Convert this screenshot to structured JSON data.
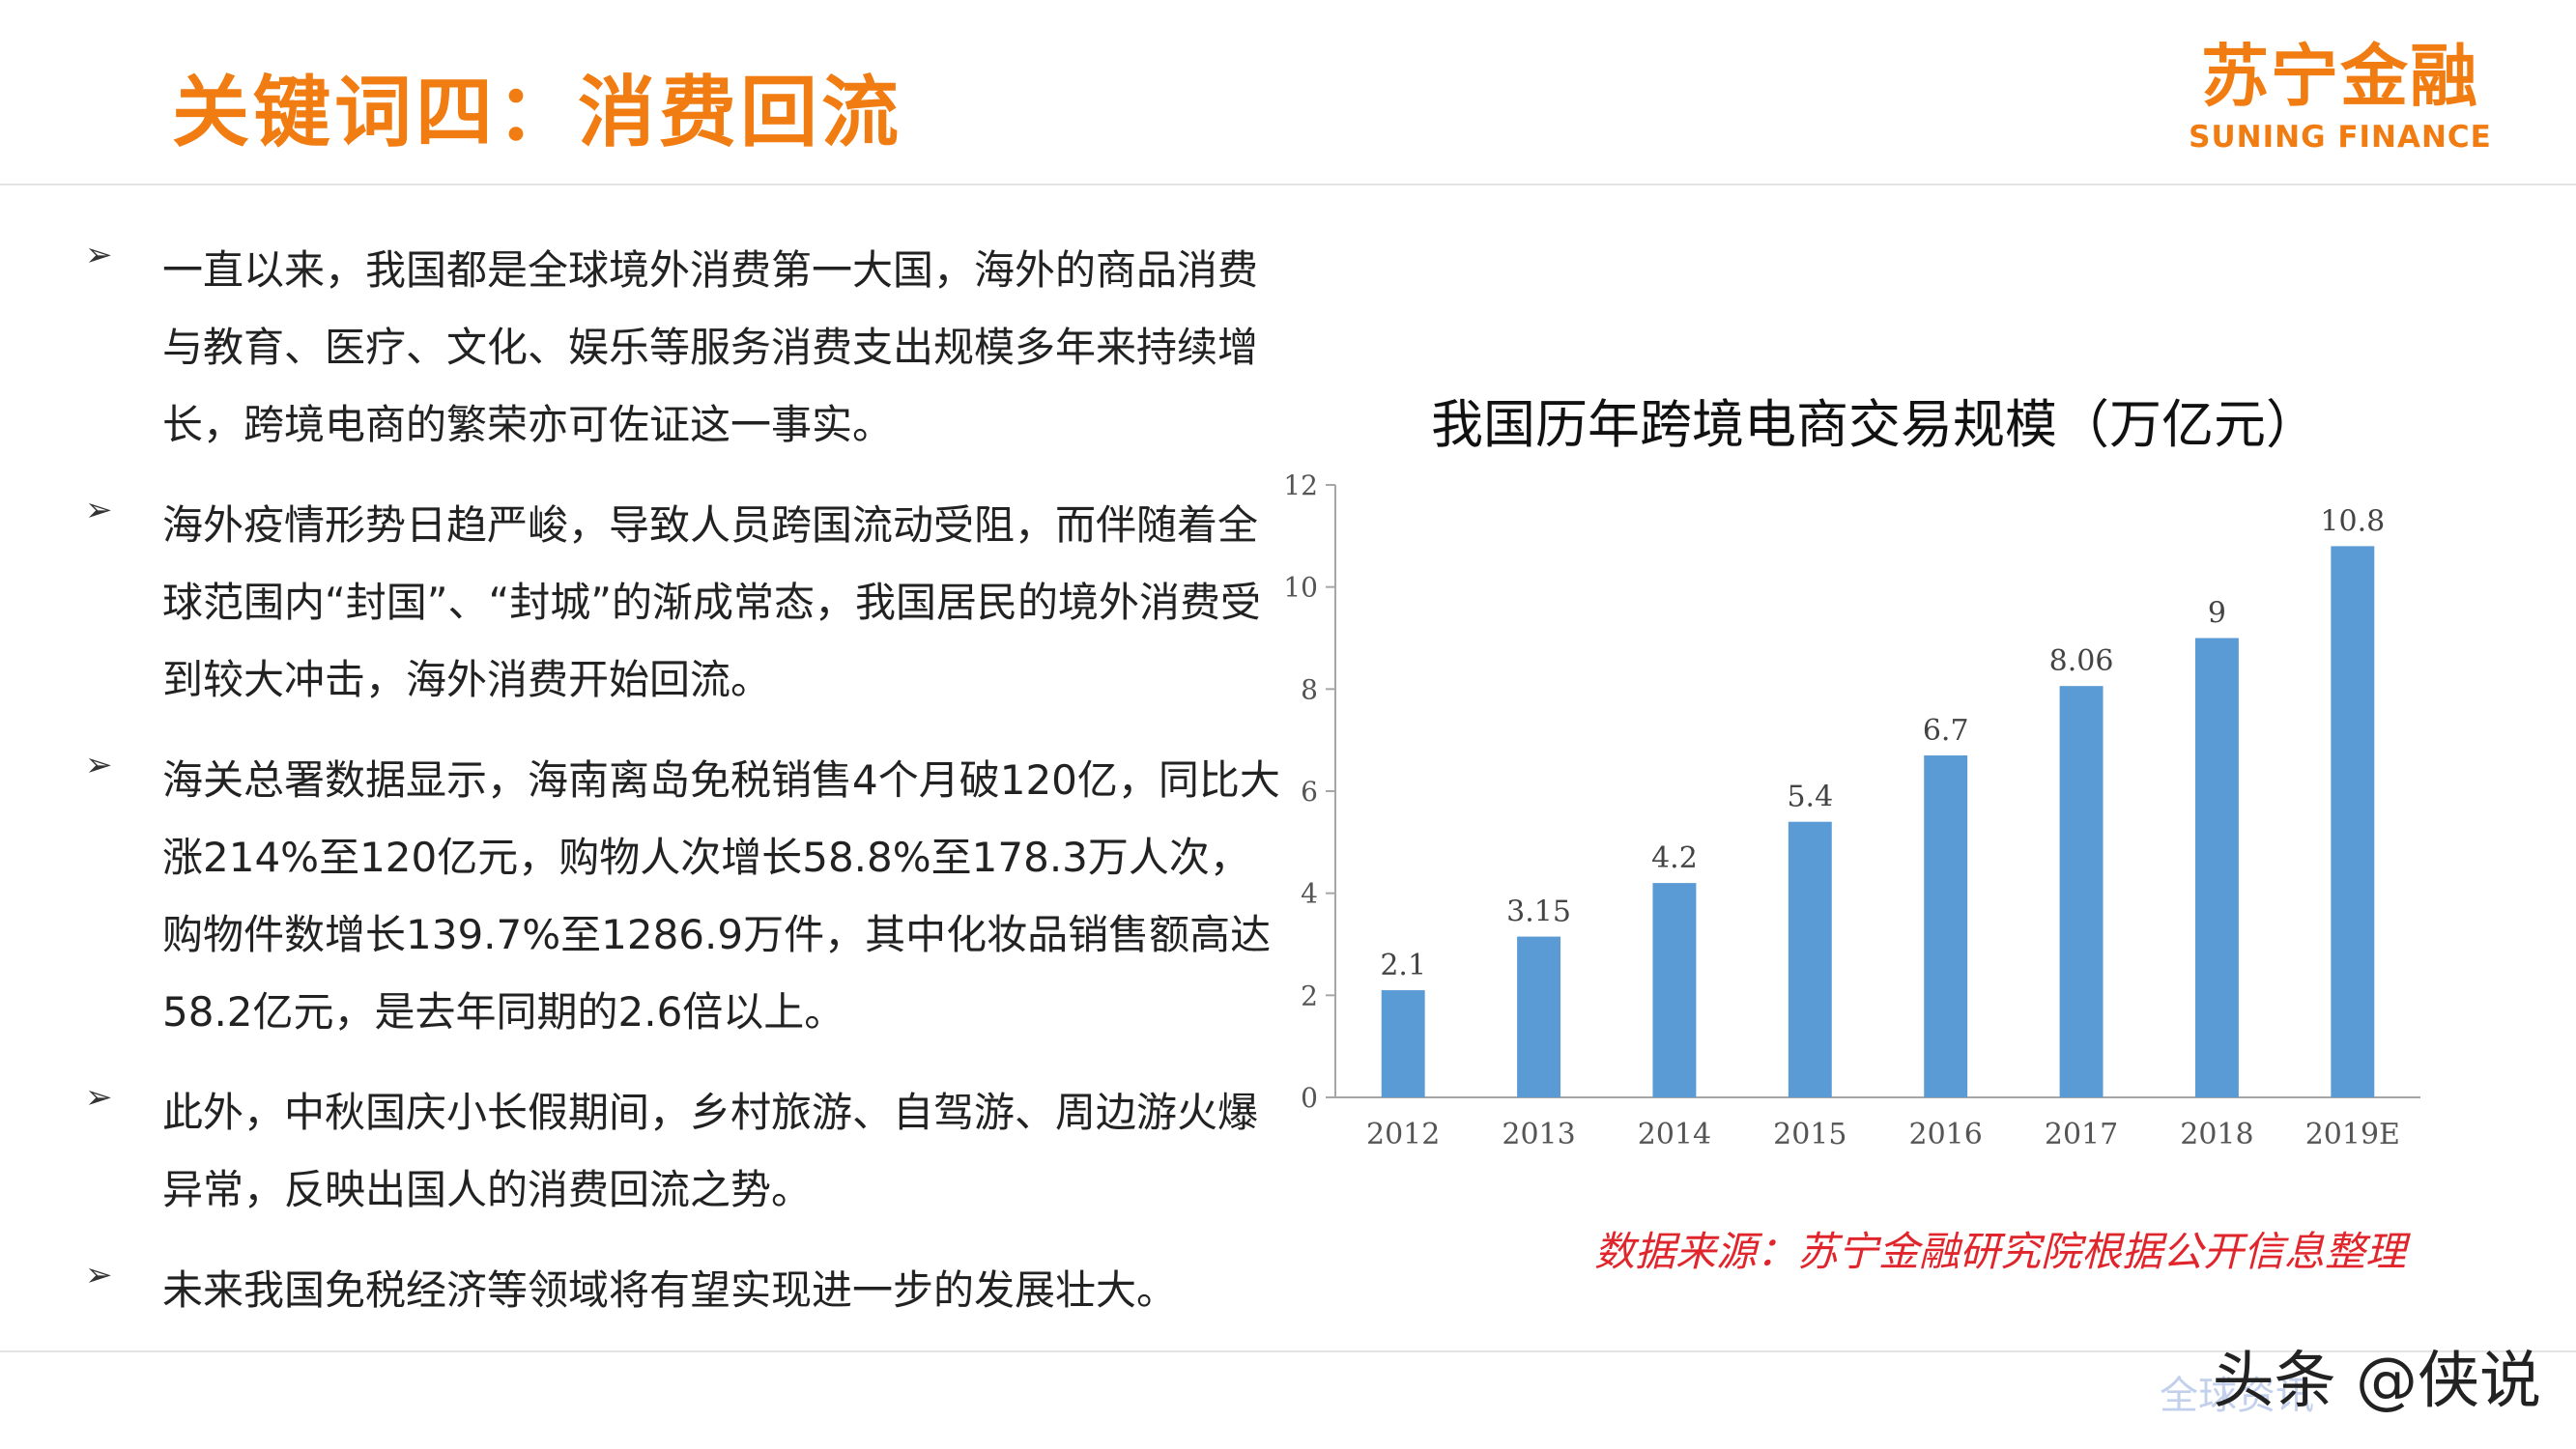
{
  "header": {
    "title": "关键词四：消费回流",
    "logo_cn": "苏宁金融",
    "logo_en": "SUNING FINANCE"
  },
  "bullets": [
    {
      "icon": "arrow-bullet-icon",
      "text": "一直以来，我国都是全球境外消费第一大国，海外的商品消费与教育、医疗、文化、娱乐等服务消费支出规模多年来持续增长，跨境电商的繁荣亦可佐证这一事实。"
    },
    {
      "icon": "arrow-bullet-icon",
      "text": "海外疫情形势日趋严峻，导致人员跨国流动受阻，而伴随着全球范围内“封国”、“封城”的渐成常态，我国居民的境外消费受到较大冲击，海外消费开始回流。"
    },
    {
      "icon": "arrow-bullet-icon",
      "text": "海关总署数据显示，海南离岛免税销售4个月破120亿，同比大涨214%至120亿元，购物人次增长58.8%至178.3万人次，购物件数增长139.7%至1286.9万件，其中化妆品销售额高达58.2亿元，是去年同期的2.6倍以上。"
    },
    {
      "icon": "arrow-bullet-icon",
      "text": "此外，中秋国庆小长假期间，乡村旅游、自驾游、周边游火爆异常，反映出国人的消费回流之势。"
    },
    {
      "icon": "arrow-bullet-icon",
      "text": "未来我国免税经济等领域将有望实现进一步的发展壮大。"
    }
  ],
  "chart_data": {
    "type": "bar",
    "title": "我国历年跨境电商交易规模（万亿元）",
    "categories": [
      "2012",
      "2013",
      "2014",
      "2015",
      "2016",
      "2017",
      "2018",
      "2019E"
    ],
    "values": [
      2.1,
      3.15,
      4.2,
      5.4,
      6.7,
      8.06,
      9,
      10.8
    ],
    "value_labels": [
      "2.1",
      "3.15",
      "4.2",
      "5.4",
      "6.7",
      "8.06",
      "9",
      "10.8"
    ],
    "ylim": [
      0,
      12
    ],
    "yticks": [
      0,
      2,
      4,
      6,
      8,
      10,
      12
    ],
    "xlabel": "",
    "ylabel": "",
    "grid": false,
    "bar_color": "#5b9bd5"
  },
  "source": "数据来源：苏宁金融研究院根据公开信息整理",
  "watermark": "头条 @侠说",
  "watermark_sub": "全球资讯",
  "colors": {
    "accent": "#f07c12",
    "source_red": "#e0262c",
    "bar": "#5b9bd5"
  }
}
